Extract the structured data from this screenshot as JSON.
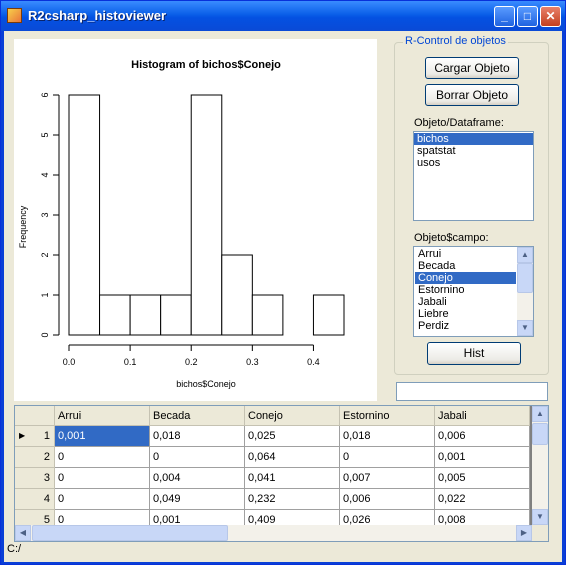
{
  "window": {
    "title": "R2csharp_histoviewer",
    "minimize": "_",
    "maximize": "□",
    "close": "✕"
  },
  "chart_data": {
    "type": "bar",
    "title": "Histogram of bichos$Conejo",
    "xlabel": "bichos$Conejo",
    "ylabel": "Frequency",
    "bins": [
      {
        "from": 0.0,
        "to": 0.05,
        "count": 6
      },
      {
        "from": 0.05,
        "to": 0.1,
        "count": 1
      },
      {
        "from": 0.1,
        "to": 0.15,
        "count": 1
      },
      {
        "from": 0.15,
        "to": 0.2,
        "count": 1
      },
      {
        "from": 0.2,
        "to": 0.25,
        "count": 6
      },
      {
        "from": 0.25,
        "to": 0.3,
        "count": 2
      },
      {
        "from": 0.3,
        "to": 0.35,
        "count": 1
      },
      {
        "from": 0.35,
        "to": 0.4,
        "count": 0
      },
      {
        "from": 0.4,
        "to": 0.45,
        "count": 1
      }
    ],
    "xticks": [
      "0.0",
      "0.1",
      "0.2",
      "0.3",
      "0.4"
    ],
    "xtick_values": [
      0.0,
      0.1,
      0.2,
      0.3,
      0.4
    ],
    "yticks": [
      "0",
      "1",
      "2",
      "3",
      "4",
      "5",
      "6"
    ],
    "xlim": [
      0,
      0.45
    ],
    "ylim": [
      0,
      6
    ]
  },
  "control": {
    "group_title": "R-Control de objetos",
    "load_button": "Cargar Objeto",
    "delete_button": "Borrar Objeto",
    "objects_label": "Objeto/Dataframe:",
    "objects": [
      "bichos",
      "spatstat",
      "usos"
    ],
    "objects_selected": 0,
    "fields_label": "Objeto$campo:",
    "fields": [
      "Arrui",
      "Becada",
      "Conejo",
      "Estornino",
      "Jabali",
      "Liebre",
      "Perdiz"
    ],
    "fields_selected": 2,
    "hist_button": "Hist",
    "textbox_value": ""
  },
  "grid": {
    "columns": [
      "Arrui",
      "Becada",
      "Conejo",
      "Estornino",
      "Jabali"
    ],
    "rows": [
      {
        "n": "1",
        "cells": [
          "0,001",
          "0,018",
          "0,025",
          "0,018",
          "0,006"
        ]
      },
      {
        "n": "2",
        "cells": [
          "0",
          "0",
          "0,064",
          "0",
          "0,001"
        ]
      },
      {
        "n": "3",
        "cells": [
          "0",
          "0,004",
          "0,041",
          "0,007",
          "0,005"
        ]
      },
      {
        "n": "4",
        "cells": [
          "0",
          "0,049",
          "0,232",
          "0,006",
          "0,022"
        ]
      },
      {
        "n": "5",
        "cells": [
          "0",
          "0,001",
          "0,409",
          "0,026",
          "0,008"
        ]
      }
    ],
    "current_row_marker": "▶"
  },
  "statusbar": {
    "path": "C:/"
  },
  "colors": {
    "selection": "#316ac5",
    "title_accent": "#0046d5"
  }
}
